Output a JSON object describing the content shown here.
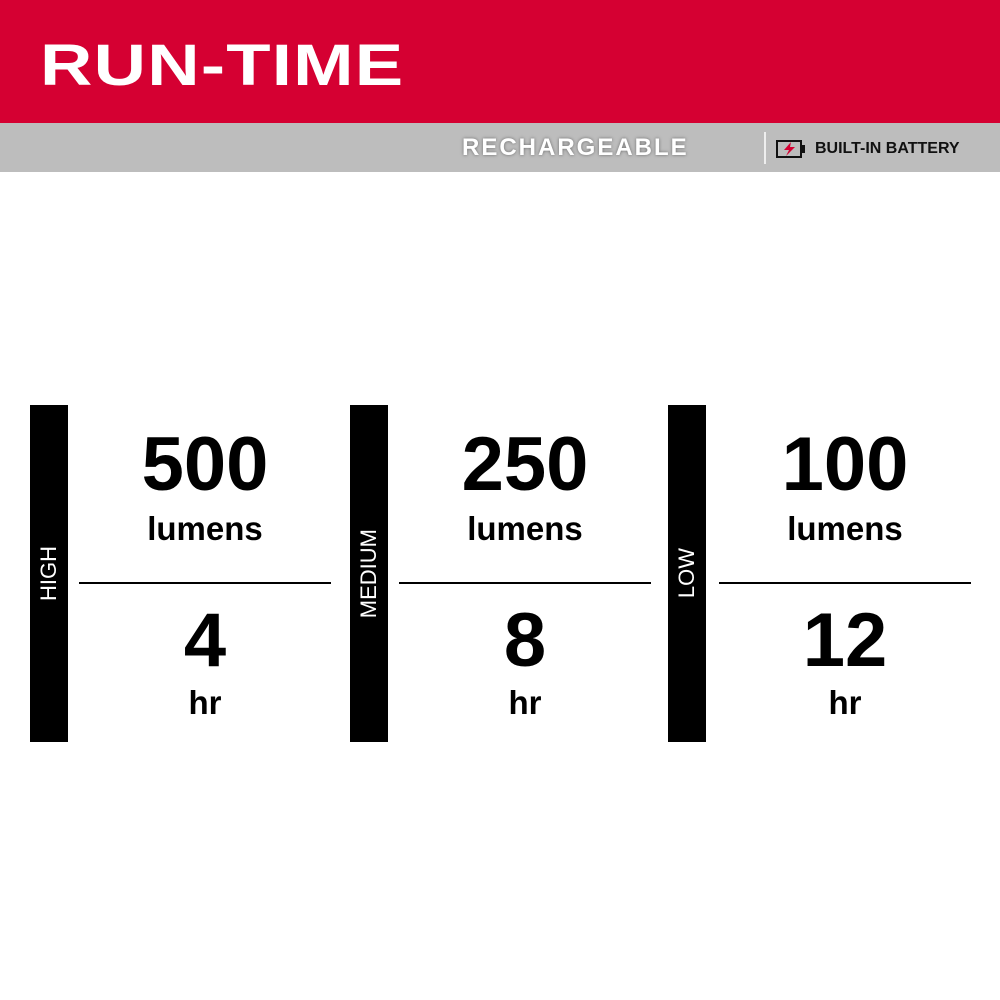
{
  "header": {
    "title": "RUN-TIME",
    "rechargeable": "RECHARGEABLE",
    "battery_label": "BUILT-IN BATTERY",
    "battery_icon": "battery-charging-icon",
    "brand_color": "#D50032"
  },
  "modes": [
    {
      "label": "HIGH",
      "lumens": "500",
      "lumens_unit": "lumens",
      "hours": "4",
      "hours_unit": "hr"
    },
    {
      "label": "MEDIUM",
      "lumens": "250",
      "lumens_unit": "lumens",
      "hours": "8",
      "hours_unit": "hr"
    },
    {
      "label": "LOW",
      "lumens": "100",
      "lumens_unit": "lumens",
      "hours": "12",
      "hours_unit": "hr"
    }
  ]
}
